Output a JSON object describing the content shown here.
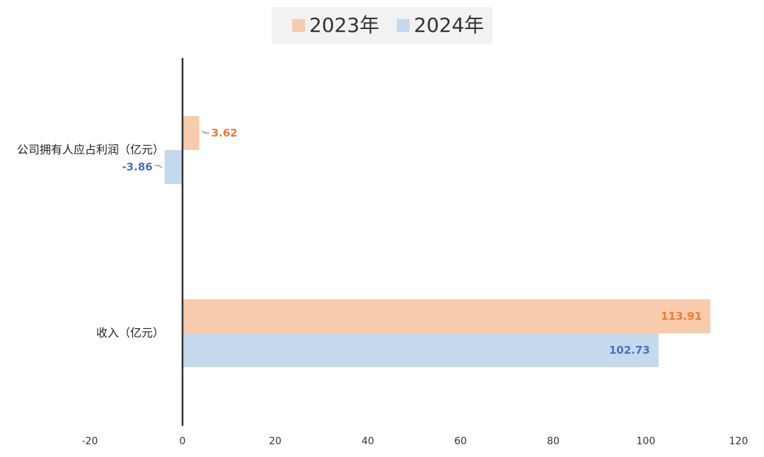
{
  "chart_data": {
    "type": "bar",
    "orientation": "horizontal",
    "categories": [
      "公司拥有人应占利润（亿元）",
      "收入（亿元）"
    ],
    "series": [
      {
        "name": "2023年",
        "color": "#f8cbad",
        "label_color": "#ed7d31",
        "values": [
          3.62,
          113.91
        ]
      },
      {
        "name": "2024年",
        "color": "#c5d9ed",
        "label_color": "#4472c4",
        "values": [
          -3.86,
          102.73
        ]
      }
    ],
    "xlim": [
      -20,
      120
    ],
    "xticks": [
      -20,
      0,
      20,
      40,
      60,
      80,
      100,
      120
    ],
    "legend_position": "top-center",
    "grid": false
  }
}
